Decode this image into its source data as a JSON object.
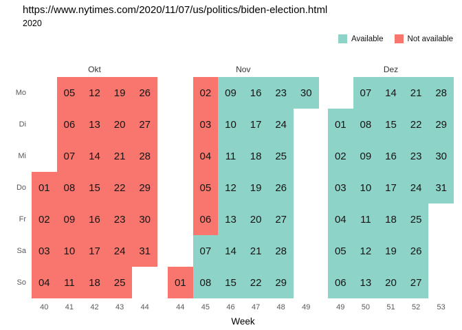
{
  "page": {
    "url": "https://www.nytimes.com/2020/11/07/us/politics/biden-election.html",
    "year": "2020"
  },
  "legend": {
    "items": [
      {
        "label": "Available",
        "status": "av",
        "color": "#8DD3C7"
      },
      {
        "label": "Not available",
        "status": "na",
        "color": "#F8766D"
      }
    ]
  },
  "chart_data": {
    "type": "heatmap",
    "subtype": "calendar-availability",
    "title": "2020",
    "annotation_url": "https://www.nytimes.com/2020/11/07/us/politics/biden-election.html",
    "xlabel": "Week",
    "day_labels": [
      "Mo",
      "Di",
      "Mi",
      "Do",
      "Fr",
      "Sa",
      "So"
    ],
    "legend_entries": [
      "Available",
      "Not available"
    ],
    "colors": {
      "available": "#8DD3C7",
      "not_available": "#F8766D"
    },
    "months": [
      {
        "label": "Okt",
        "weeks": [
          "40",
          "41",
          "42",
          "43",
          "44"
        ],
        "rows": [
          {
            "day_label": "Mo",
            "cells": [
              {
                "day": "",
                "status": "empty"
              },
              {
                "day": "05",
                "status": "na"
              },
              {
                "day": "12",
                "status": "na"
              },
              {
                "day": "19",
                "status": "na"
              },
              {
                "day": "26",
                "status": "na"
              }
            ]
          },
          {
            "day_label": "Di",
            "cells": [
              {
                "day": "",
                "status": "empty"
              },
              {
                "day": "06",
                "status": "na"
              },
              {
                "day": "13",
                "status": "na"
              },
              {
                "day": "20",
                "status": "na"
              },
              {
                "day": "27",
                "status": "na"
              }
            ]
          },
          {
            "day_label": "Mi",
            "cells": [
              {
                "day": "",
                "status": "empty"
              },
              {
                "day": "07",
                "status": "na"
              },
              {
                "day": "14",
                "status": "na"
              },
              {
                "day": "21",
                "status": "na"
              },
              {
                "day": "28",
                "status": "na"
              }
            ]
          },
          {
            "day_label": "Do",
            "cells": [
              {
                "day": "01",
                "status": "na"
              },
              {
                "day": "08",
                "status": "na"
              },
              {
                "day": "15",
                "status": "na"
              },
              {
                "day": "22",
                "status": "na"
              },
              {
                "day": "29",
                "status": "na"
              }
            ]
          },
          {
            "day_label": "Fr",
            "cells": [
              {
                "day": "02",
                "status": "na"
              },
              {
                "day": "09",
                "status": "na"
              },
              {
                "day": "16",
                "status": "na"
              },
              {
                "day": "23",
                "status": "na"
              },
              {
                "day": "30",
                "status": "na"
              }
            ]
          },
          {
            "day_label": "Sa",
            "cells": [
              {
                "day": "03",
                "status": "na"
              },
              {
                "day": "10",
                "status": "na"
              },
              {
                "day": "17",
                "status": "na"
              },
              {
                "day": "24",
                "status": "na"
              },
              {
                "day": "31",
                "status": "na"
              }
            ]
          },
          {
            "day_label": "So",
            "cells": [
              {
                "day": "04",
                "status": "na"
              },
              {
                "day": "11",
                "status": "na"
              },
              {
                "day": "18",
                "status": "na"
              },
              {
                "day": "25",
                "status": "na"
              },
              {
                "day": "",
                "status": "empty"
              }
            ]
          }
        ]
      },
      {
        "label": "Nov",
        "weeks": [
          "44",
          "45",
          "46",
          "47",
          "48",
          "49"
        ],
        "rows": [
          {
            "day_label": "Mo",
            "cells": [
              {
                "day": "",
                "status": "empty"
              },
              {
                "day": "02",
                "status": "na"
              },
              {
                "day": "09",
                "status": "av"
              },
              {
                "day": "16",
                "status": "av"
              },
              {
                "day": "23",
                "status": "av"
              },
              {
                "day": "30",
                "status": "av"
              }
            ]
          },
          {
            "day_label": "Di",
            "cells": [
              {
                "day": "",
                "status": "empty"
              },
              {
                "day": "03",
                "status": "na"
              },
              {
                "day": "10",
                "status": "av"
              },
              {
                "day": "17",
                "status": "av"
              },
              {
                "day": "24",
                "status": "av"
              },
              {
                "day": "",
                "status": "empty"
              }
            ]
          },
          {
            "day_label": "Mi",
            "cells": [
              {
                "day": "",
                "status": "empty"
              },
              {
                "day": "04",
                "status": "na"
              },
              {
                "day": "11",
                "status": "av"
              },
              {
                "day": "18",
                "status": "av"
              },
              {
                "day": "25",
                "status": "av"
              },
              {
                "day": "",
                "status": "empty"
              }
            ]
          },
          {
            "day_label": "Do",
            "cells": [
              {
                "day": "",
                "status": "empty"
              },
              {
                "day": "05",
                "status": "na"
              },
              {
                "day": "12",
                "status": "av"
              },
              {
                "day": "19",
                "status": "av"
              },
              {
                "day": "26",
                "status": "av"
              },
              {
                "day": "",
                "status": "empty"
              }
            ]
          },
          {
            "day_label": "Fr",
            "cells": [
              {
                "day": "",
                "status": "empty"
              },
              {
                "day": "06",
                "status": "na"
              },
              {
                "day": "13",
                "status": "av"
              },
              {
                "day": "20",
                "status": "av"
              },
              {
                "day": "27",
                "status": "av"
              },
              {
                "day": "",
                "status": "empty"
              }
            ]
          },
          {
            "day_label": "Sa",
            "cells": [
              {
                "day": "",
                "status": "empty"
              },
              {
                "day": "07",
                "status": "av"
              },
              {
                "day": "14",
                "status": "av"
              },
              {
                "day": "21",
                "status": "av"
              },
              {
                "day": "28",
                "status": "av"
              },
              {
                "day": "",
                "status": "empty"
              }
            ]
          },
          {
            "day_label": "So",
            "cells": [
              {
                "day": "01",
                "status": "na"
              },
              {
                "day": "08",
                "status": "av"
              },
              {
                "day": "15",
                "status": "av"
              },
              {
                "day": "22",
                "status": "av"
              },
              {
                "day": "29",
                "status": "av"
              },
              {
                "day": "",
                "status": "empty"
              }
            ]
          }
        ]
      },
      {
        "label": "Dez",
        "weeks": [
          "49",
          "50",
          "51",
          "52",
          "53"
        ],
        "rows": [
          {
            "day_label": "Mo",
            "cells": [
              {
                "day": "",
                "status": "empty"
              },
              {
                "day": "07",
                "status": "av"
              },
              {
                "day": "14",
                "status": "av"
              },
              {
                "day": "21",
                "status": "av"
              },
              {
                "day": "28",
                "status": "av"
              }
            ]
          },
          {
            "day_label": "Di",
            "cells": [
              {
                "day": "01",
                "status": "av"
              },
              {
                "day": "08",
                "status": "av"
              },
              {
                "day": "15",
                "status": "av"
              },
              {
                "day": "22",
                "status": "av"
              },
              {
                "day": "29",
                "status": "av"
              }
            ]
          },
          {
            "day_label": "Mi",
            "cells": [
              {
                "day": "02",
                "status": "av"
              },
              {
                "day": "09",
                "status": "av"
              },
              {
                "day": "16",
                "status": "av"
              },
              {
                "day": "23",
                "status": "av"
              },
              {
                "day": "30",
                "status": "av"
              }
            ]
          },
          {
            "day_label": "Do",
            "cells": [
              {
                "day": "03",
                "status": "av"
              },
              {
                "day": "10",
                "status": "av"
              },
              {
                "day": "17",
                "status": "av"
              },
              {
                "day": "24",
                "status": "av"
              },
              {
                "day": "31",
                "status": "av"
              }
            ]
          },
          {
            "day_label": "Fr",
            "cells": [
              {
                "day": "04",
                "status": "av"
              },
              {
                "day": "11",
                "status": "av"
              },
              {
                "day": "18",
                "status": "av"
              },
              {
                "day": "25",
                "status": "av"
              },
              {
                "day": "",
                "status": "empty"
              }
            ]
          },
          {
            "day_label": "Sa",
            "cells": [
              {
                "day": "05",
                "status": "av"
              },
              {
                "day": "12",
                "status": "av"
              },
              {
                "day": "19",
                "status": "av"
              },
              {
                "day": "26",
                "status": "av"
              },
              {
                "day": "",
                "status": "empty"
              }
            ]
          },
          {
            "day_label": "So",
            "cells": [
              {
                "day": "06",
                "status": "av"
              },
              {
                "day": "13",
                "status": "av"
              },
              {
                "day": "20",
                "status": "av"
              },
              {
                "day": "27",
                "status": "av"
              },
              {
                "day": "",
                "status": "empty"
              }
            ]
          }
        ]
      }
    ]
  }
}
